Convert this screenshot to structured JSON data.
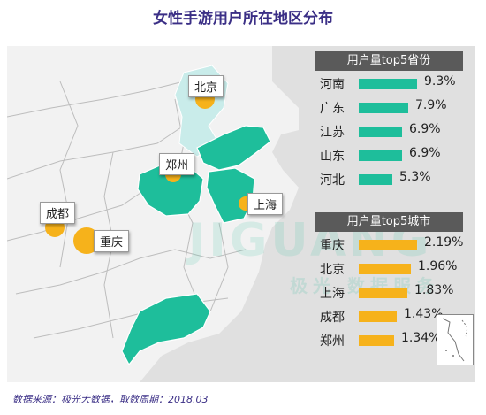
{
  "title": "女性手游用户所在地区分布",
  "map_labels": {
    "beijing": "北京",
    "zhengzhou": "郑州",
    "shanghai": "上海",
    "chengdu": "成都",
    "chongqing": "重庆"
  },
  "watermark": "JIGUANG",
  "watermark_sub": "极光 数据服务",
  "colors": {
    "province_fill": "#1ebe9b",
    "beijing_fill": "#c9ecea",
    "province_bar": "#1ebe9b",
    "city_bar": "#f6b21b",
    "city_dot": "#f6b21b",
    "panel_header": "#5a5a5a",
    "title": "#3b2f86"
  },
  "chart_data": [
    {
      "type": "bar",
      "title": "用户量top5省份",
      "categories": [
        "河南",
        "广东",
        "江苏",
        "山东",
        "河北"
      ],
      "values": [
        9.3,
        7.9,
        6.9,
        6.9,
        5.3
      ],
      "labels": [
        "9.3%",
        "7.9%",
        "6.9%",
        "6.9%",
        "5.3%"
      ]
    },
    {
      "type": "bar",
      "title": "用户量top5城市",
      "categories": [
        "重庆",
        "北京",
        "上海",
        "成都",
        "郑州"
      ],
      "values": [
        2.19,
        1.96,
        1.83,
        1.43,
        1.34
      ],
      "labels": [
        "2.19%",
        "1.96%",
        "1.83%",
        "1.43%",
        "1.34%"
      ]
    }
  ],
  "footnote": "数据来源：极光大数据，取数周期：2018.03"
}
